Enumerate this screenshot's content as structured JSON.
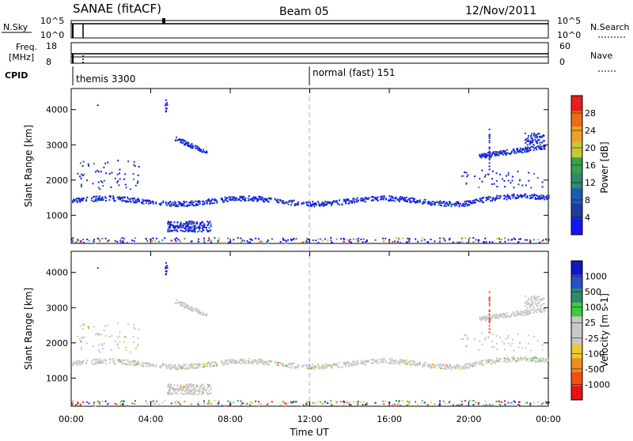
{
  "header": {
    "station": "SANAE (fitACF)",
    "beam": "Beam 05",
    "date": "12/Nov/2011"
  },
  "panels": {
    "nsky_label": "N.Sky",
    "nsearch_label": "N.Search",
    "nsky_ticks": [
      "10^5",
      "10^0"
    ],
    "nsearch_ticks": [
      "10^5",
      "10^0"
    ],
    "freq_label_1": "Freq.",
    "freq_label_2": "[MHz]",
    "freq_ticks": [
      "18",
      "8"
    ],
    "nave_label": "Nave",
    "nave_ticks": [
      "60",
      "0"
    ],
    "cpid_label": "CPID",
    "cpid_segments": [
      "themis 3300",
      "normal (fast) 151"
    ]
  },
  "colors": {
    "power_scale": [
      "#1414ff",
      "#1e3ca0",
      "#1e5ab4",
      "#2e8a6a",
      "#3aa04a",
      "#c8c832",
      "#f0a028",
      "#f06a14",
      "#e61e1e"
    ],
    "velocity_scale": [
      "#1414c8",
      "#2850c8",
      "#2e8a6a",
      "#3ccc3c",
      "#c8c8c8",
      "#c8c8c8",
      "#f0c830",
      "#f08c1e",
      "#f05014",
      "#e61414"
    ]
  },
  "chart_data": [
    {
      "type": "heatmap",
      "name": "power",
      "ylabel": "Slant Range [km]",
      "y_ticks": [
        1000,
        2000,
        3000,
        4000
      ],
      "ylim": [
        200,
        4600
      ],
      "xlim_hours": [
        0,
        24
      ],
      "colorbar_label": "Power [dB]",
      "colorbar_ticks": [
        "4",
        "8",
        "12",
        "16",
        "20",
        "24",
        "28"
      ],
      "colorbar_range": [
        0,
        32
      ],
      "features": [
        {
          "label": "band",
          "x_start": 0.0,
          "x_end": 24.0,
          "y": 1420,
          "values_db": 6
        },
        {
          "label": "echo",
          "x_start": 4.8,
          "x_end": 7.0,
          "y": 700,
          "values_db": 6
        },
        {
          "label": "echo",
          "x_start": 5.2,
          "x_end": 6.8,
          "y": 2850,
          "values_db": 5
        },
        {
          "label": "echo",
          "x_start": 20.5,
          "x_end": 23.8,
          "y": 2780,
          "values_db": 5
        }
      ]
    },
    {
      "type": "heatmap",
      "name": "velocity",
      "ylabel": "Slant Range [km]",
      "y_ticks": [
        1000,
        2000,
        3000,
        4000
      ],
      "ylim": [
        200,
        4600
      ],
      "xlabel": "Time UT",
      "x_ticks": [
        "00:00",
        "04:00",
        "08:00",
        "12:00",
        "16:00",
        "20:00",
        "00:00"
      ],
      "x_tick_hours": [
        0,
        4,
        8,
        12,
        16,
        20,
        24
      ],
      "colorbar_label": "Velocity [m s-1]",
      "colorbar_ticks": [
        "1000",
        "500",
        "100",
        "25",
        "-25",
        "-100",
        "-500",
        "-1000"
      ]
    }
  ]
}
